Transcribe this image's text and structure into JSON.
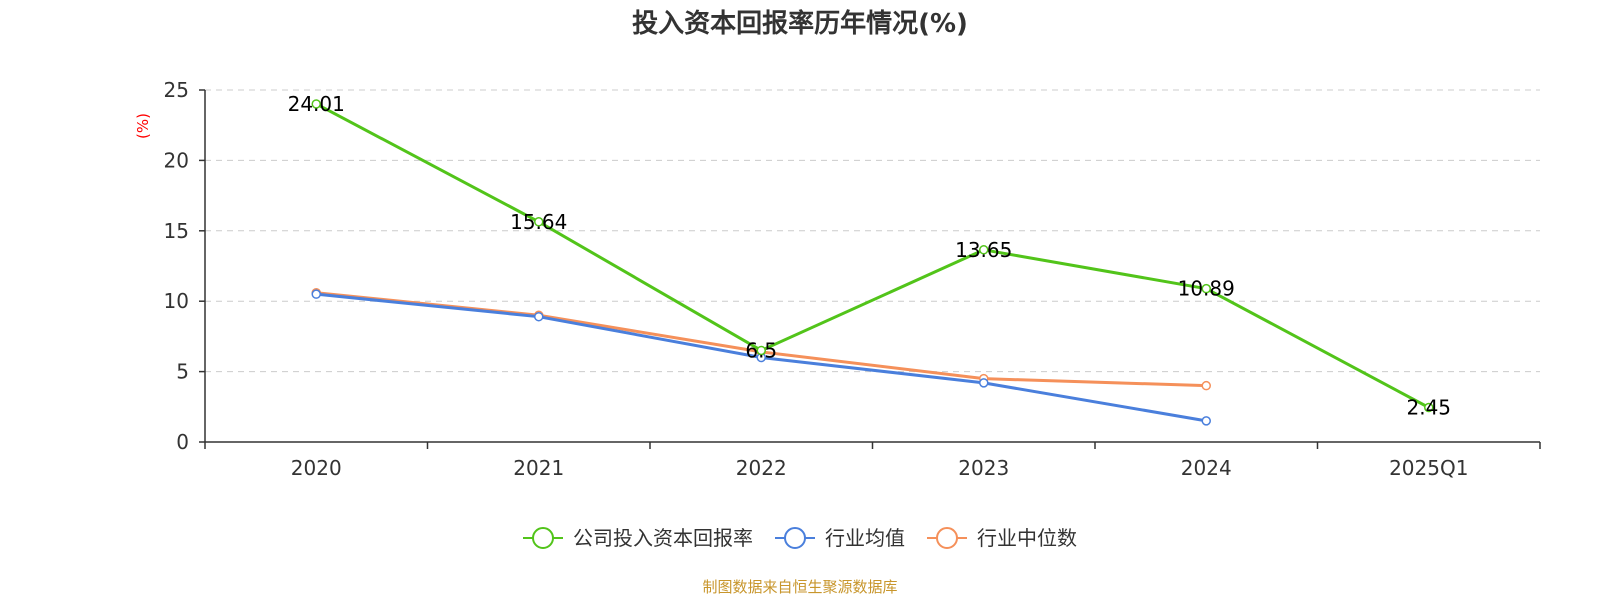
{
  "chart_data": {
    "type": "line",
    "title": "投入资本回报率历年情况(%)",
    "ylabel": "(%)",
    "xlabel": "",
    "categories": [
      "2020",
      "2021",
      "2022",
      "2023",
      "2024",
      "2025Q1"
    ],
    "ylim": [
      0,
      25
    ],
    "yticks": [
      0,
      5,
      10,
      15,
      20,
      25
    ],
    "grid": true,
    "legend_position": "bottom",
    "series": [
      {
        "name": "公司投入资本回报率",
        "color": "#52c41a",
        "values": [
          24.01,
          15.64,
          6.5,
          13.65,
          10.89,
          2.45
        ],
        "labels": [
          "24.01",
          "15.64",
          "6.5",
          "13.65",
          "10.89",
          "2.45"
        ]
      },
      {
        "name": "行业均值",
        "color": "#4a7fdc",
        "values": [
          10.5,
          8.9,
          6.0,
          4.2,
          1.5,
          null
        ]
      },
      {
        "name": "行业中位数",
        "color": "#f5905a",
        "values": [
          10.6,
          9.0,
          6.4,
          4.5,
          4.0,
          null
        ]
      }
    ],
    "source": "制图数据来自恒生聚源数据库"
  }
}
